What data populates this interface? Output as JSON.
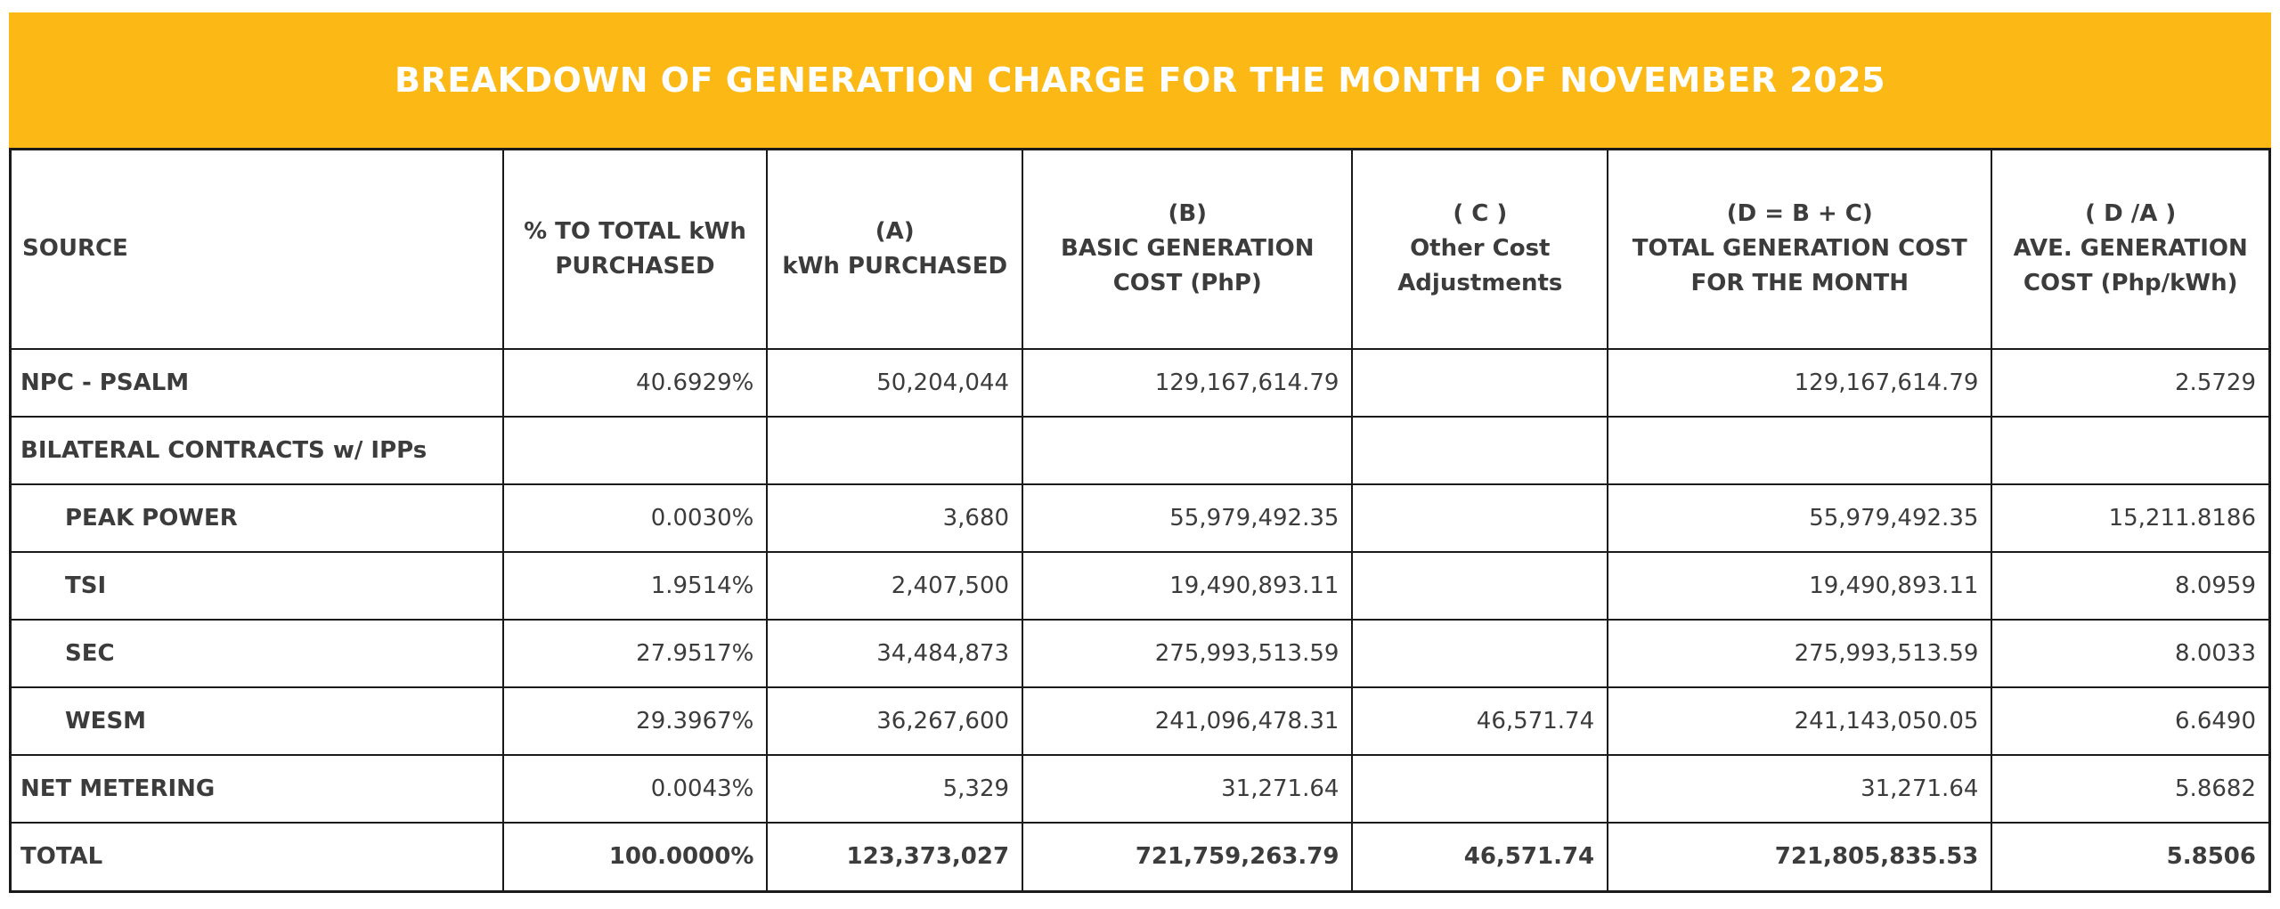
{
  "banner": {
    "title": "BREAKDOWN OF GENERATION CHARGE FOR THE MONTH OF NOVEMBER 2025",
    "background_color": "#FCB815",
    "title_color": "#FFFFFF"
  },
  "colors": {
    "table_border": "#1A1A1A",
    "table_text": "#3C3C3C",
    "background": "#FFFFFF"
  },
  "table": {
    "columns": [
      {
        "id": "source",
        "lines": [
          "SOURCE"
        ],
        "width_pct": 21.8,
        "align": "left"
      },
      {
        "id": "pct-to-total-kwh",
        "lines": [
          "% TO TOTAL kWh",
          "PURCHASED"
        ],
        "width_pct": 11.7,
        "align": "right"
      },
      {
        "id": "kwh-purchased",
        "lines": [
          "(A)",
          "kWh PURCHASED"
        ],
        "width_pct": 11.3,
        "align": "right"
      },
      {
        "id": "basic-generation-cost",
        "lines": [
          "(B)",
          "BASIC GENERATION",
          "COST (PhP)"
        ],
        "width_pct": 14.6,
        "align": "right"
      },
      {
        "id": "other-cost-adjustments",
        "lines": [
          "( C )",
          "Other Cost",
          "Adjustments"
        ],
        "width_pct": 11.3,
        "align": "right"
      },
      {
        "id": "total-generation-cost",
        "lines": [
          "(D = B + C)",
          "TOTAL GENERATION COST",
          "FOR THE MONTH"
        ],
        "width_pct": 17.0,
        "align": "right"
      },
      {
        "id": "ave-generation-cost",
        "lines": [
          "( D /A )",
          "AVE. GENERATION",
          "COST (Php/kWh)"
        ],
        "width_pct": 12.3,
        "align": "right"
      }
    ],
    "rows": [
      {
        "source": "NPC - PSALM",
        "indent": false,
        "total": false,
        "cells": [
          "40.6929%",
          "50,204,044",
          "129,167,614.79",
          "",
          "129,167,614.79",
          "2.5729"
        ]
      },
      {
        "source": "BILATERAL CONTRACTS w/ IPPs",
        "indent": false,
        "total": false,
        "cells": [
          "",
          "",
          "",
          "",
          "",
          ""
        ]
      },
      {
        "source": "PEAK POWER",
        "indent": true,
        "total": false,
        "cells": [
          "0.0030%",
          "3,680",
          "55,979,492.35",
          "",
          "55,979,492.35",
          "15,211.8186"
        ]
      },
      {
        "source": "TSI",
        "indent": true,
        "total": false,
        "cells": [
          "1.9514%",
          "2,407,500",
          "19,490,893.11",
          "",
          "19,490,893.11",
          "8.0959"
        ]
      },
      {
        "source": "SEC",
        "indent": true,
        "total": false,
        "cells": [
          "27.9517%",
          "34,484,873",
          "275,993,513.59",
          "",
          "275,993,513.59",
          "8.0033"
        ]
      },
      {
        "source": "WESM",
        "indent": true,
        "total": false,
        "cells": [
          "29.3967%",
          "36,267,600",
          "241,096,478.31",
          "46,571.74",
          "241,143,050.05",
          "6.6490"
        ]
      },
      {
        "source": "NET METERING",
        "indent": false,
        "total": false,
        "cells": [
          "0.0043%",
          "5,329",
          "31,271.64",
          "",
          "31,271.64",
          "5.8682"
        ]
      },
      {
        "source": "TOTAL",
        "indent": false,
        "total": true,
        "cells": [
          "100.0000%",
          "123,373,027",
          "721,759,263.79",
          "46,571.74",
          "721,805,835.53",
          "5.8506"
        ]
      }
    ]
  }
}
